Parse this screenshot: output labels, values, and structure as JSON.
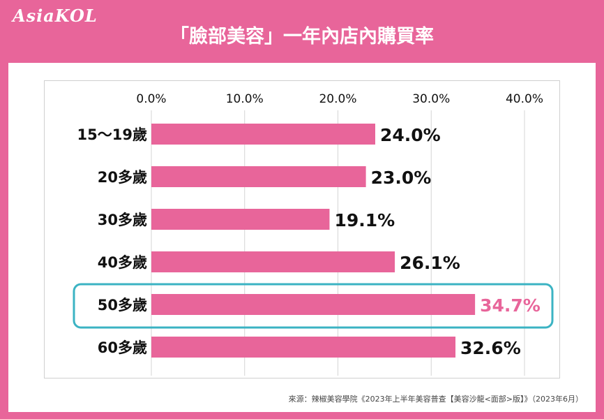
{
  "header": {
    "logo_text": "AsiaKOL",
    "title": "「臉部美容」一年內店內購買率"
  },
  "colors": {
    "background": "#e8659a",
    "bar": "#e8659a",
    "highlight_outline": "#3bb3c3",
    "highlight_label": "#e8659a"
  },
  "chart_data": {
    "type": "bar",
    "orientation": "horizontal",
    "categories": [
      "15～19歲",
      "20多歲",
      "30多歲",
      "40多歲",
      "50多歲",
      "60多歲"
    ],
    "values": [
      24.0,
      23.0,
      19.1,
      26.1,
      34.7,
      32.6
    ],
    "value_labels": [
      "24.0%",
      "23.0%",
      "19.1%",
      "26.1%",
      "34.7%",
      "32.6%"
    ],
    "xlim": [
      0,
      40
    ],
    "xticks": [
      0,
      10,
      20,
      30,
      40
    ],
    "xtick_labels": [
      "0.0%",
      "10.0%",
      "20.0%",
      "30.0%",
      "40.0%"
    ],
    "grid": true,
    "highlighted_category": "50多歲",
    "title": "「臉部美容」一年內店內購買率",
    "xlabel": "",
    "ylabel": ""
  },
  "footer": {
    "source": "來源：辣椒美容學院《2023年上半年美容普查【美容沙龍<面部>版】》（2023年6月）"
  }
}
